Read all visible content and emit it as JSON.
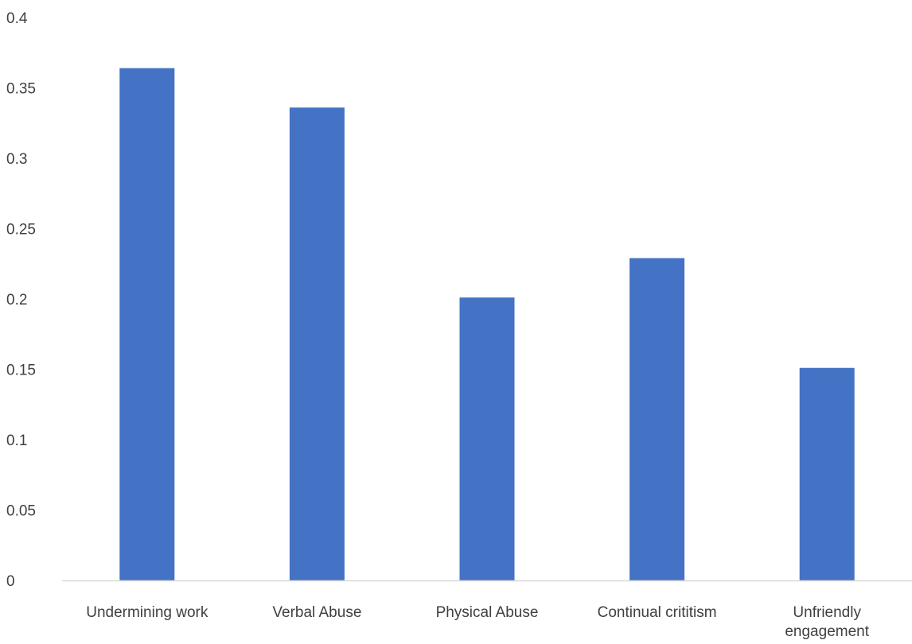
{
  "chart_data": {
    "type": "bar",
    "title": "",
    "xlabel": "",
    "ylabel": "",
    "categories": [
      "Undermining work",
      "Verbal Abuse",
      "Physical Abuse",
      "Continual crititism",
      "Unfriendly engagement"
    ],
    "category_lines": [
      [
        "Undermining work"
      ],
      [
        "Verbal Abuse"
      ],
      [
        "Physical Abuse"
      ],
      [
        "Continual crititism"
      ],
      [
        "Unfriendly",
        "engagement"
      ]
    ],
    "values": [
      0.364,
      0.336,
      0.201,
      0.229,
      0.151
    ],
    "ylim": [
      0,
      0.4
    ],
    "yticks": [
      "0",
      "0.05",
      "0.1",
      "0.15",
      "0.2",
      "0.25",
      "0.3",
      "0.35",
      "0.4"
    ],
    "grid": false,
    "legend": "none",
    "bar_color": "#4472C4",
    "axis_color": "#D9D9D9"
  }
}
